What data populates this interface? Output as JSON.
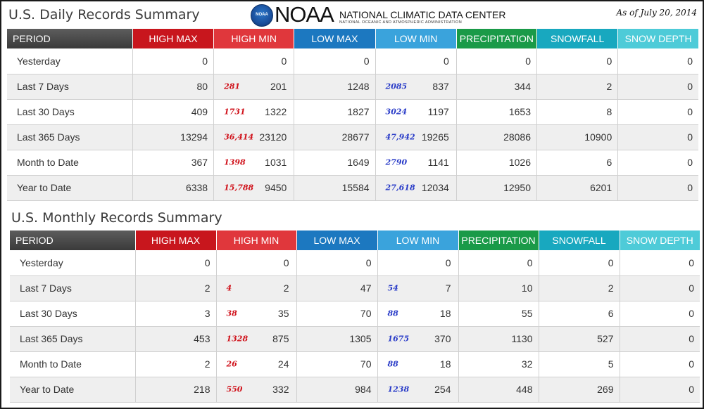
{
  "header": {
    "daily_title": "U.S. Daily Records Summary",
    "logo_text": "NOAA",
    "logo_badge": "NOAA",
    "org_name": "NATIONAL CLIMATIC DATA CENTER",
    "org_sub": "NATIONAL OCEANIC AND ATMOSPHERIC ADMINISTRATION",
    "as_of": "As of July 20, 2014"
  },
  "monthly_title": "U.S. Monthly Records Summary",
  "columns": [
    "PERIOD",
    "HIGH MAX",
    "HIGH MIN",
    "LOW MAX",
    "LOW MIN",
    "PRECIPITATION",
    "SNOWFALL",
    "SNOW DEPTH"
  ],
  "colors": {
    "high_max": "#c8161d",
    "high_min": "#e0373c",
    "low_max": "#1c78c0",
    "low_min": "#3aa3dc",
    "precipitation": "#1a9a48",
    "snowfall": "#18a8bf",
    "snow_depth": "#4ecbd8",
    "period": "#4a4a4a"
  },
  "daily": {
    "rows": [
      {
        "period": "Yesterday",
        "high_max": "0",
        "high_min_rec": "",
        "high_min": "0",
        "low_max": "0",
        "low_min_rec": "",
        "low_min": "0",
        "precip": "0",
        "snowfall": "0",
        "snow_depth": "0"
      },
      {
        "period": "Last 7 Days",
        "high_max": "80",
        "high_min_rec": "281",
        "high_min": "201",
        "low_max": "1248",
        "low_min_rec": "2085",
        "low_min": "837",
        "precip": "344",
        "snowfall": "2",
        "snow_depth": "0"
      },
      {
        "period": "Last 30 Days",
        "high_max": "409",
        "high_min_rec": "1731",
        "high_min": "1322",
        "low_max": "1827",
        "low_min_rec": "3024",
        "low_min": "1197",
        "precip": "1653",
        "snowfall": "8",
        "snow_depth": "0"
      },
      {
        "period": "Last 365 Days",
        "high_max": "13294",
        "high_min_rec": "36,414",
        "high_min": "23120",
        "low_max": "28677",
        "low_min_rec": "47,942",
        "low_min": "19265",
        "precip": "28086",
        "snowfall": "10900",
        "snow_depth": "0"
      },
      {
        "period": "Month to Date",
        "high_max": "367",
        "high_min_rec": "1398",
        "high_min": "1031",
        "low_max": "1649",
        "low_min_rec": "2790",
        "low_min": "1141",
        "precip": "1026",
        "snowfall": "6",
        "snow_depth": "0"
      },
      {
        "period": "Year to Date",
        "high_max": "6338",
        "high_min_rec": "15,788",
        "high_min": "9450",
        "low_max": "15584",
        "low_min_rec": "27,618",
        "low_min": "12034",
        "precip": "12950",
        "snowfall": "6201",
        "snow_depth": "0"
      }
    ]
  },
  "monthly": {
    "rows": [
      {
        "period": "Yesterday",
        "high_max": "0",
        "high_min_rec": "",
        "high_min": "0",
        "low_max": "0",
        "low_min_rec": "",
        "low_min": "0",
        "precip": "0",
        "snowfall": "0",
        "snow_depth": "0"
      },
      {
        "period": "Last 7 Days",
        "high_max": "2",
        "high_min_rec": "4",
        "high_min": "2",
        "low_max": "47",
        "low_min_rec": "54",
        "low_min": "7",
        "precip": "10",
        "snowfall": "2",
        "snow_depth": "0"
      },
      {
        "period": "Last 30 Days",
        "high_max": "3",
        "high_min_rec": "38",
        "high_min": "35",
        "low_max": "70",
        "low_min_rec": "88",
        "low_min": "18",
        "precip": "55",
        "snowfall": "6",
        "snow_depth": "0"
      },
      {
        "period": "Last 365 Days",
        "high_max": "453",
        "high_min_rec": "1328",
        "high_min": "875",
        "low_max": "1305",
        "low_min_rec": "1675",
        "low_min": "370",
        "precip": "1130",
        "snowfall": "527",
        "snow_depth": "0"
      },
      {
        "period": "Month to Date",
        "high_max": "2",
        "high_min_rec": "26",
        "high_min": "24",
        "low_max": "70",
        "low_min_rec": "88",
        "low_min": "18",
        "precip": "32",
        "snowfall": "5",
        "snow_depth": "0"
      },
      {
        "period": "Year to Date",
        "high_max": "218",
        "high_min_rec": "550",
        "high_min": "332",
        "low_max": "984",
        "low_min_rec": "1238",
        "low_min": "254",
        "precip": "448",
        "snowfall": "269",
        "snow_depth": "0"
      }
    ]
  }
}
